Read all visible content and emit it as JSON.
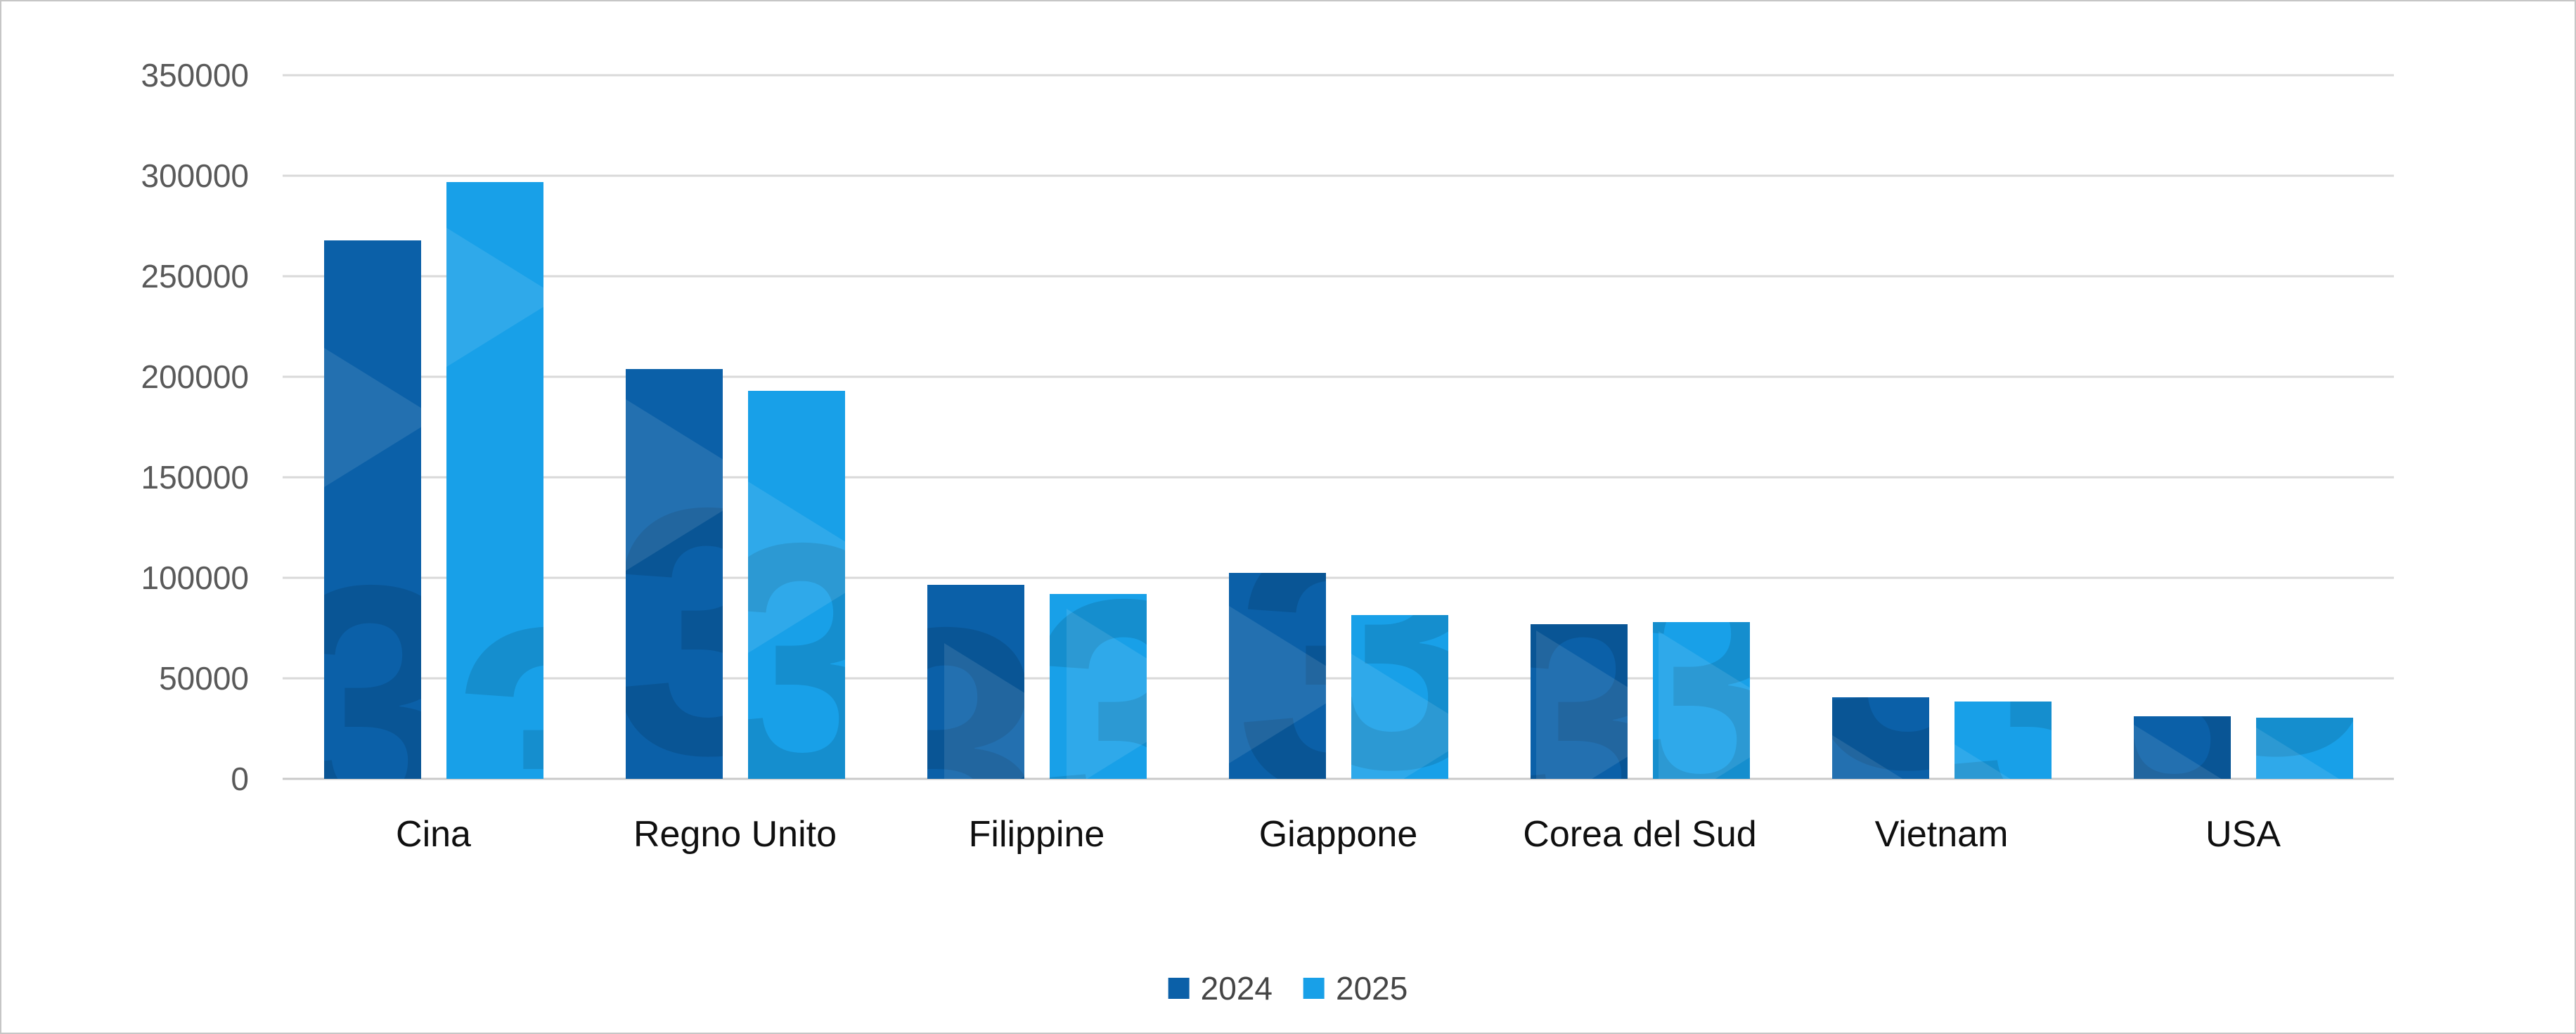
{
  "chart_data": {
    "type": "bar",
    "title": "",
    "categories": [
      "Cina",
      "Regno Unito",
      "Filippine",
      "Giappone",
      "Corea del Sud",
      "Vietnam",
      "USA"
    ],
    "series": [
      {
        "name": "2024",
        "color": "#0b60a8",
        "values": [
          268000,
          204000,
          96500,
          102500,
          77000,
          40500,
          31000
        ]
      },
      {
        "name": "2025",
        "color": "#18a0e8",
        "values": [
          297000,
          193000,
          92000,
          81500,
          78000,
          38500,
          30500
        ]
      }
    ],
    "ylim": [
      0,
      350000
    ],
    "ytick_step": 50000,
    "yticks": [
      "350000",
      "300000",
      "250000",
      "200000",
      "150000",
      "100000",
      "50000",
      "0"
    ],
    "grid": true,
    "legend_position": "bottom",
    "xlabel": "",
    "ylabel": ""
  },
  "legend": {
    "items": [
      {
        "label": "2024",
        "color": "#0b60a8"
      },
      {
        "label": "2025",
        "color": "#18a0e8"
      }
    ]
  },
  "colors": {
    "background": "#ffffff",
    "frame_border": "#c6c6c6",
    "gridline": "#d9d9d9",
    "axis_line": "#c9c9c9",
    "ytick_text": "#595959",
    "category_text": "#0f0f0f",
    "legend_text": "#454545",
    "series_2024": "#0b60a8",
    "series_2025": "#18a0e8"
  }
}
